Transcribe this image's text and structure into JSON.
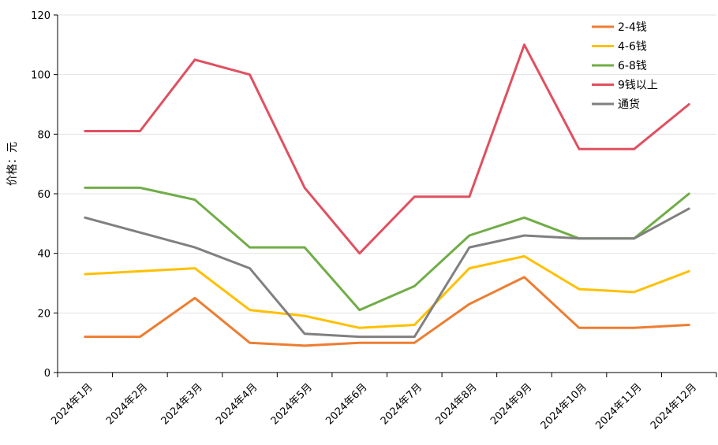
{
  "chart_data": {
    "type": "line",
    "categories": [
      "2024年1月",
      "2024年2月",
      "2024年3月",
      "2024年4月",
      "2024年5月",
      "2024年6月",
      "2024年7月",
      "2024年8月",
      "2024年9月",
      "2024年10月",
      "2024年11月",
      "2024年12月"
    ],
    "ylabel": "价格：元",
    "ylim": [
      0,
      120
    ],
    "yticks": [
      0,
      20,
      40,
      60,
      80,
      100,
      120
    ],
    "grid": true,
    "legend_position": "top-right",
    "series": [
      {
        "name": "2-4钱",
        "color": "#ED7D31",
        "values": [
          12,
          12,
          25,
          10,
          9,
          10,
          10,
          23,
          32,
          15,
          15,
          16
        ]
      },
      {
        "name": "4-6钱",
        "color": "#FFC000",
        "values": [
          33,
          34,
          35,
          21,
          19,
          15,
          16,
          35,
          39,
          28,
          27,
          34
        ]
      },
      {
        "name": "6-8钱",
        "color": "#70AD47",
        "values": [
          62,
          62,
          58,
          42,
          42,
          21,
          29,
          46,
          52,
          45,
          45,
          60
        ]
      },
      {
        "name": "9钱以上",
        "color": "#E05060",
        "values": [
          81,
          81,
          105,
          100,
          62,
          40,
          59,
          59,
          110,
          75,
          75,
          90
        ]
      },
      {
        "name": "通货",
        "color": "#808080",
        "values": [
          52,
          47,
          42,
          35,
          13,
          12,
          12,
          42,
          46,
          45,
          45,
          55
        ]
      }
    ]
  }
}
